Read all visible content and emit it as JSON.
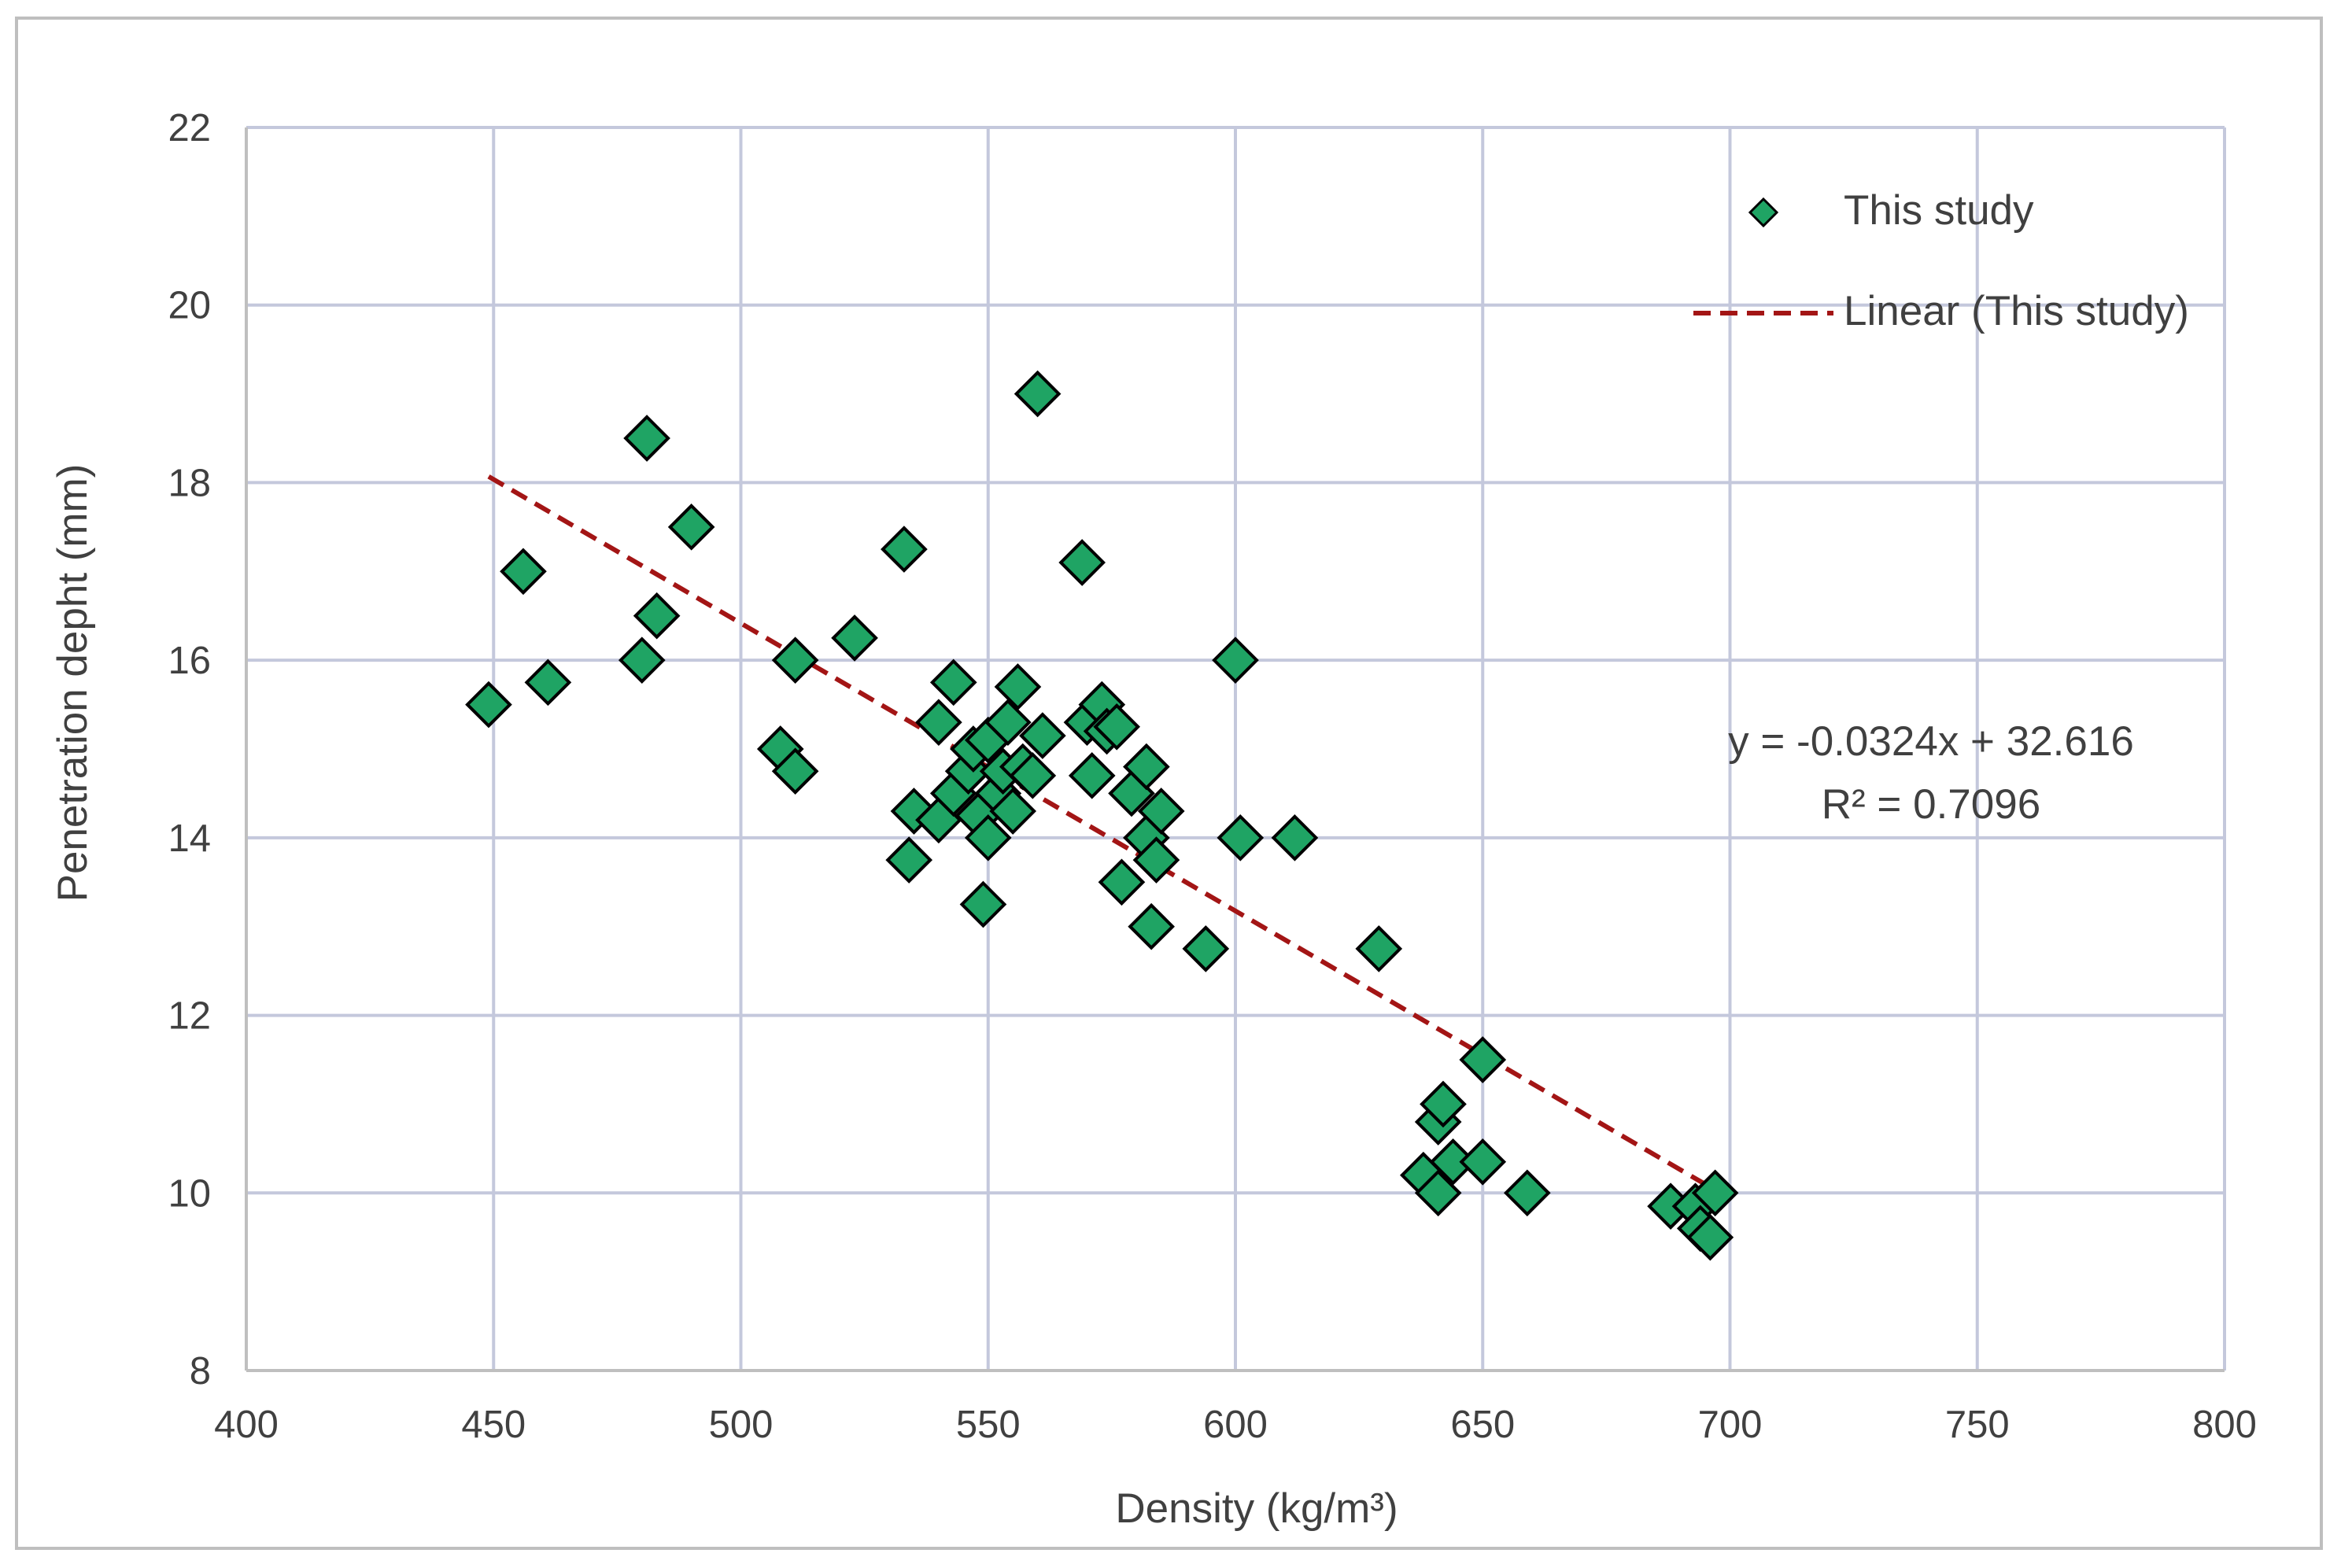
{
  "chart_data": {
    "type": "scatter",
    "title": "",
    "xlabel": "Density (kg/m³)",
    "ylabel": "Penetration depht (mm)",
    "xlim": [
      400,
      800
    ],
    "ylim": [
      8,
      22
    ],
    "xticks": [
      400,
      450,
      500,
      550,
      600,
      650,
      700,
      750,
      800
    ],
    "yticks": [
      8,
      10,
      12,
      14,
      16,
      18,
      20,
      22
    ],
    "grid": true,
    "legend_position": "top-right",
    "colors": {
      "marker_fill": "#1fa464",
      "marker_edge": "#000000",
      "trendline": "#a31515",
      "grid": "#c4c8dc",
      "axis": "#bfbfbf",
      "frame": "#bfbfbf"
    },
    "series": [
      {
        "name": "This study",
        "marker": "diamond",
        "points": [
          [
            449,
            15.5
          ],
          [
            456,
            17.0
          ],
          [
            461,
            15.75
          ],
          [
            480,
            16.0
          ],
          [
            481,
            18.5
          ],
          [
            483,
            16.5
          ],
          [
            490,
            17.5
          ],
          [
            508,
            15.0
          ],
          [
            511,
            14.75
          ],
          [
            511,
            16.0
          ],
          [
            523,
            16.25
          ],
          [
            533,
            17.25
          ],
          [
            534,
            13.75
          ],
          [
            535,
            14.3
          ],
          [
            540,
            14.2
          ],
          [
            540,
            15.3
          ],
          [
            543,
            15.75
          ],
          [
            543,
            14.5
          ],
          [
            546,
            14.75
          ],
          [
            547,
            15.0
          ],
          [
            548,
            14.25
          ],
          [
            549,
            13.25
          ],
          [
            550,
            15.1
          ],
          [
            550,
            14.0
          ],
          [
            552,
            14.5
          ],
          [
            553,
            14.75
          ],
          [
            554,
            15.3
          ],
          [
            555,
            14.3
          ],
          [
            556,
            15.7
          ],
          [
            557,
            14.8
          ],
          [
            559,
            14.7
          ],
          [
            560,
            19.0
          ],
          [
            561,
            15.15
          ],
          [
            569,
            17.1
          ],
          [
            570,
            15.3
          ],
          [
            571,
            14.7
          ],
          [
            573,
            15.5
          ],
          [
            574,
            15.2
          ],
          [
            576,
            15.25
          ],
          [
            577,
            13.5
          ],
          [
            579,
            14.5
          ],
          [
            582,
            14.8
          ],
          [
            582,
            14.0
          ],
          [
            583,
            13.0
          ],
          [
            584,
            13.75
          ],
          [
            585,
            14.3
          ],
          [
            594,
            12.75
          ],
          [
            600,
            16.0
          ],
          [
            601,
            14.0
          ],
          [
            612,
            14.0
          ],
          [
            629,
            12.75
          ],
          [
            638,
            10.2
          ],
          [
            641,
            10.0
          ],
          [
            641,
            10.8
          ],
          [
            642,
            11.0
          ],
          [
            644,
            10.35
          ],
          [
            650,
            10.35
          ],
          [
            650,
            11.5
          ],
          [
            659,
            10.0
          ],
          [
            688,
            9.85
          ],
          [
            693,
            9.85
          ],
          [
            694,
            9.6
          ],
          [
            696,
            9.5
          ],
          [
            697,
            10.0
          ]
        ]
      }
    ],
    "trendline": {
      "name": "Linear (This study)",
      "type": "linear",
      "slope": -0.0324,
      "intercept": 32.616,
      "x_range": [
        449,
        697
      ],
      "equation": "y = -0.0324x + 32.616",
      "r_squared": "R² = 0.7096"
    }
  }
}
